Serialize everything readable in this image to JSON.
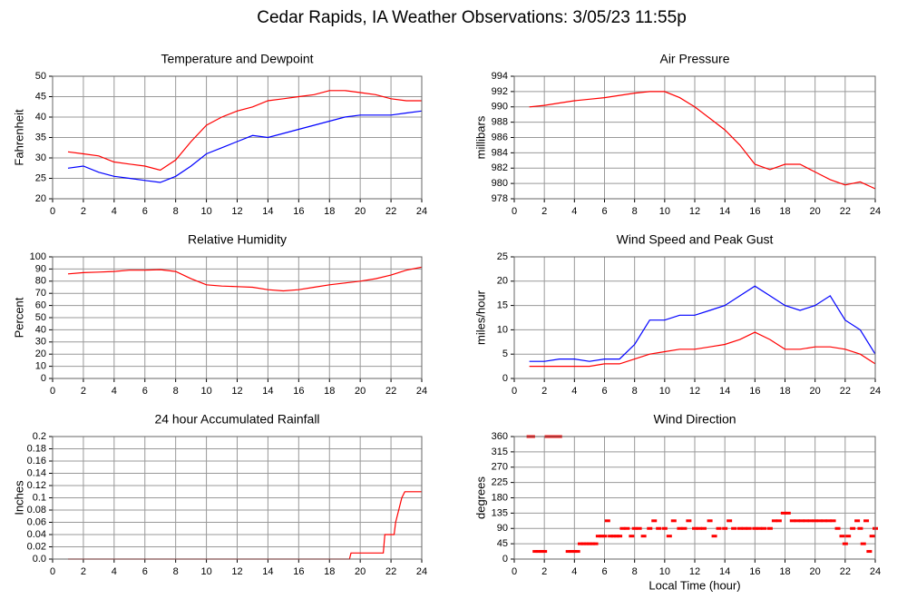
{
  "title": "Cedar Rapids, IA Weather Observations: 3/05/23 11:55p",
  "chart_data": [
    {
      "type": "line",
      "title": "Temperature and Dewpoint",
      "ylabel": "Fahrenheit",
      "x": [
        1,
        2,
        3,
        4,
        5,
        6,
        7,
        8,
        9,
        10,
        11,
        12,
        13,
        14,
        15,
        16,
        17,
        18,
        19,
        20,
        21,
        22,
        23,
        24
      ],
      "series": [
        {
          "color": "#ff0000",
          "values": [
            31.5,
            31,
            30.5,
            29,
            28.5,
            28,
            27,
            29.5,
            34,
            38,
            40,
            41.5,
            42.5,
            44,
            44.5,
            45,
            45.5,
            46.5,
            46.5,
            46,
            45.5,
            44.5,
            44,
            44
          ]
        },
        {
          "color": "#0000ff",
          "values": [
            27.5,
            28,
            26.5,
            25.5,
            25,
            24.5,
            24,
            25.5,
            28,
            31,
            32.5,
            34,
            35.5,
            35,
            36,
            37,
            38,
            39,
            40,
            40.5,
            40.5,
            40.5,
            41,
            41.5
          ]
        }
      ],
      "xlim": [
        0,
        24
      ],
      "xticks": [
        0,
        2,
        4,
        6,
        8,
        10,
        12,
        14,
        16,
        18,
        20,
        22,
        24
      ],
      "ylim": [
        20,
        50
      ],
      "yticks": [
        20,
        25,
        30,
        35,
        40,
        45,
        50
      ],
      "grid": true
    },
    {
      "type": "line",
      "title": "Air Pressure",
      "ylabel": "millibars",
      "x": [
        1,
        2,
        3,
        4,
        5,
        6,
        7,
        8,
        9,
        10,
        11,
        12,
        13,
        14,
        15,
        16,
        17,
        18,
        19,
        20,
        21,
        22,
        23,
        24
      ],
      "series": [
        {
          "color": "#ff0000",
          "values": [
            990,
            990.2,
            990.5,
            990.8,
            991,
            991.2,
            991.5,
            991.8,
            992,
            992,
            991.2,
            990,
            988.5,
            987,
            985,
            982.5,
            981.8,
            982.5,
            982.5,
            981.5,
            980.5,
            979.8,
            980.2,
            979.3
          ]
        }
      ],
      "xlim": [
        0,
        24
      ],
      "xticks": [
        0,
        2,
        4,
        6,
        8,
        10,
        12,
        14,
        16,
        18,
        20,
        22,
        24
      ],
      "ylim": [
        978,
        994
      ],
      "yticks": [
        978,
        980,
        982,
        984,
        986,
        988,
        990,
        992,
        994
      ],
      "grid": true
    },
    {
      "type": "line",
      "title": "Relative Humidity",
      "ylabel": "Percent",
      "x": [
        1,
        2,
        3,
        4,
        5,
        6,
        7,
        8,
        9,
        10,
        11,
        12,
        13,
        14,
        15,
        16,
        17,
        18,
        19,
        20,
        21,
        22,
        23,
        24
      ],
      "series": [
        {
          "color": "#ff0000",
          "values": [
            86,
            87,
            87.5,
            88,
            89,
            89,
            89.5,
            88,
            82,
            77,
            76,
            75.5,
            75,
            73,
            72,
            73,
            75,
            77,
            78.5,
            80,
            82,
            85,
            89,
            91.5
          ]
        }
      ],
      "xlim": [
        0,
        24
      ],
      "xticks": [
        0,
        2,
        4,
        6,
        8,
        10,
        12,
        14,
        16,
        18,
        20,
        22,
        24
      ],
      "ylim": [
        0,
        100
      ],
      "yticks": [
        0,
        10,
        20,
        30,
        40,
        50,
        60,
        70,
        80,
        90,
        100
      ],
      "grid": true
    },
    {
      "type": "line",
      "title": "Wind Speed and Peak Gust",
      "ylabel": "miles/hour",
      "x": [
        1,
        2,
        3,
        4,
        5,
        6,
        7,
        8,
        9,
        10,
        11,
        12,
        13,
        14,
        15,
        16,
        17,
        18,
        19,
        20,
        21,
        22,
        23,
        24
      ],
      "series": [
        {
          "color": "#0000ff",
          "values": [
            3.5,
            3.5,
            4,
            4,
            3.5,
            4,
            4,
            7,
            12,
            12,
            13,
            13,
            14,
            15,
            17,
            19,
            17,
            15,
            14,
            15,
            17,
            12,
            10,
            5
          ]
        },
        {
          "color": "#ff0000",
          "values": [
            2.5,
            2.5,
            2.5,
            2.5,
            2.5,
            3,
            3,
            4,
            5,
            5.5,
            6,
            6,
            6.5,
            7,
            8,
            9.5,
            8,
            6,
            6,
            6.5,
            6.5,
            6,
            5,
            3
          ]
        }
      ],
      "xlim": [
        0,
        24
      ],
      "xticks": [
        0,
        2,
        4,
        6,
        8,
        10,
        12,
        14,
        16,
        18,
        20,
        22,
        24
      ],
      "ylim": [
        0,
        25
      ],
      "yticks": [
        0,
        5,
        10,
        15,
        20,
        25
      ],
      "grid": true
    },
    {
      "type": "line",
      "title": "24 hour Accumulated Rainfall",
      "ylabel": "Inches",
      "x": [
        1,
        19.3,
        19.4,
        21.5,
        21.6,
        22.2,
        22.3,
        22.5,
        22.7,
        22.9,
        24
      ],
      "series": [
        {
          "color": "#ff0000",
          "values": [
            0,
            0,
            0.01,
            0.01,
            0.04,
            0.04,
            0.06,
            0.08,
            0.1,
            0.11,
            0.11
          ]
        }
      ],
      "xlim": [
        0,
        24
      ],
      "xticks": [
        0,
        2,
        4,
        6,
        8,
        10,
        12,
        14,
        16,
        18,
        20,
        22,
        24
      ],
      "ylim": [
        0,
        0.2
      ],
      "yticks": [
        {
          "value": 0,
          "label": "0.0"
        },
        0.02,
        0.04,
        0.06,
        0.08,
        0.1,
        0.12,
        0.14,
        0.16,
        0.18,
        0.2
      ],
      "grid": true
    },
    {
      "type": "scatter",
      "title": "Wind Direction",
      "ylabel": "degrees",
      "xlabel": "Local Time (hour)",
      "x": [
        1.0,
        1.2,
        1.4,
        1.6,
        1.8,
        2.0,
        2.2,
        2.4,
        2.6,
        2.8,
        3.0,
        3.6,
        3.8,
        4.0,
        4.2,
        4.4,
        4.6,
        4.8,
        5.0,
        5.2,
        5.4,
        5.6,
        5.8,
        6.0,
        6.2,
        6.4,
        6.6,
        6.8,
        7.0,
        7.2,
        7.5,
        7.8,
        8.0,
        8.3,
        8.6,
        9.0,
        9.3,
        9.6,
        10.0,
        10.3,
        10.6,
        11.0,
        11.3,
        11.6,
        12.0,
        12.3,
        12.6,
        13.0,
        13.3,
        13.6,
        14.0,
        14.3,
        14.6,
        15.0,
        15.3,
        15.6,
        16.0,
        16.3,
        16.6,
        17.0,
        17.3,
        17.6,
        17.9,
        18.2,
        18.5,
        18.8,
        19.1,
        19.4,
        19.7,
        20.0,
        20.3,
        20.6,
        20.9,
        21.2,
        21.5,
        21.8,
        22.0,
        22.2,
        22.5,
        22.8,
        23.0,
        23.2,
        23.4,
        23.6,
        23.8,
        24.0
      ],
      "series": [
        {
          "color": "#ff0000",
          "values": [
            360,
            360,
            22.5,
            22.5,
            22.5,
            22.5,
            360,
            360,
            360,
            360,
            360,
            22.5,
            22.5,
            22.5,
            22.5,
            45,
            45,
            45,
            45,
            45,
            45,
            67.5,
            67.5,
            67.5,
            112.5,
            67.5,
            67.5,
            67.5,
            67.5,
            90,
            90,
            67.5,
            90,
            90,
            67.5,
            90,
            112.5,
            90,
            90,
            67.5,
            112.5,
            90,
            90,
            112.5,
            90,
            90,
            90,
            112.5,
            67.5,
            90,
            90,
            112.5,
            90,
            90,
            90,
            90,
            90,
            90,
            90,
            90,
            112.5,
            112.5,
            135,
            135,
            112.5,
            112.5,
            112.5,
            112.5,
            112.5,
            112.5,
            112.5,
            112.5,
            112.5,
            112.5,
            90,
            67.5,
            45,
            67.5,
            90,
            112.5,
            90,
            45,
            112.5,
            22.5,
            67.5,
            90
          ]
        }
      ],
      "xlim": [
        0,
        24
      ],
      "xticks": [
        0,
        2,
        4,
        6,
        8,
        10,
        12,
        14,
        16,
        18,
        20,
        22,
        24
      ],
      "ylim": [
        0,
        360
      ],
      "yticks": [
        0,
        45,
        90,
        135,
        180,
        225,
        270,
        315,
        360
      ],
      "grid": true
    }
  ]
}
